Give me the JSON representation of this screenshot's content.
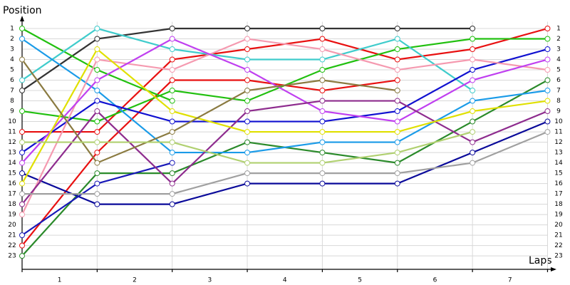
{
  "chart_data": {
    "type": "line",
    "y_label": "Position",
    "x_label": "Laps",
    "x": [
      0,
      1,
      2,
      3,
      4,
      5,
      6,
      7
    ],
    "xlim": [
      0,
      7.1
    ],
    "xticks": [
      {
        "value": 0.5,
        "label": "1"
      },
      {
        "value": 1.5,
        "label": "2"
      },
      {
        "value": 2.5,
        "label": "3"
      },
      {
        "value": 3.5,
        "label": "4"
      },
      {
        "value": 4.5,
        "label": "5"
      },
      {
        "value": 5.5,
        "label": "6"
      },
      {
        "value": 6.5,
        "label": "7"
      }
    ],
    "ylim": [
      24.3,
      0
    ],
    "yticks": [
      1,
      2,
      3,
      4,
      5,
      6,
      7,
      8,
      9,
      10,
      11,
      12,
      13,
      14,
      15,
      16,
      17,
      18,
      19,
      20,
      21,
      22,
      23
    ],
    "grid": true,
    "series": [
      {
        "color": "#333333",
        "values": [
          7,
          2,
          1,
          1,
          1,
          1,
          1,
          null
        ]
      },
      {
        "color": "#e81010",
        "values": [
          11,
          11,
          4,
          3,
          2,
          4,
          3,
          1
        ]
      },
      {
        "color": "#e81010",
        "values": [
          22,
          13,
          6,
          6,
          7,
          6,
          null,
          null
        ]
      },
      {
        "color": "#22c010",
        "values": [
          1,
          5,
          8,
          null,
          null,
          null,
          null,
          null
        ]
      },
      {
        "color": "#22c010",
        "values": [
          9,
          10,
          7,
          8,
          5,
          3,
          2,
          2
        ]
      },
      {
        "color": "#2a8a2a",
        "values": [
          23,
          15,
          15,
          12,
          13,
          14,
          10,
          6
        ]
      },
      {
        "color": "#40cccc",
        "values": [
          6,
          1,
          3,
          4,
          4,
          2,
          7,
          null
        ]
      },
      {
        "color": "#1a9be8",
        "values": [
          2,
          7,
          13,
          13,
          12,
          12,
          8,
          7
        ]
      },
      {
        "color": "#1010d0",
        "values": [
          13,
          8,
          10,
          10,
          10,
          9,
          5,
          3
        ]
      },
      {
        "color": "#0a0a9a",
        "values": [
          15,
          18,
          18,
          16,
          16,
          16,
          13,
          10
        ]
      },
      {
        "color": "#1818b8",
        "values": [
          21,
          16,
          14,
          null,
          null,
          null,
          null,
          null
        ]
      },
      {
        "color": "#f59ab0",
        "values": [
          19,
          4,
          5,
          2,
          3,
          5,
          4,
          5
        ]
      },
      {
        "color": "#c040f0",
        "values": [
          14,
          6,
          2,
          5,
          9,
          10,
          6,
          4
        ]
      },
      {
        "color": "#8e2c8e",
        "values": [
          18,
          9,
          16,
          9,
          8,
          8,
          12,
          9
        ]
      },
      {
        "color": "#e0e000",
        "values": [
          16,
          3,
          9,
          11,
          11,
          11,
          9,
          8
        ]
      },
      {
        "color": "#8a7a40",
        "values": [
          4,
          14,
          11,
          7,
          6,
          7,
          null,
          null
        ]
      },
      {
        "color": "#b0d070",
        "values": [
          12,
          12,
          12,
          14,
          14,
          13,
          11,
          null
        ]
      },
      {
        "color": "#a0a0a0",
        "values": [
          17,
          17,
          17,
          15,
          15,
          15,
          14,
          11
        ]
      }
    ]
  }
}
